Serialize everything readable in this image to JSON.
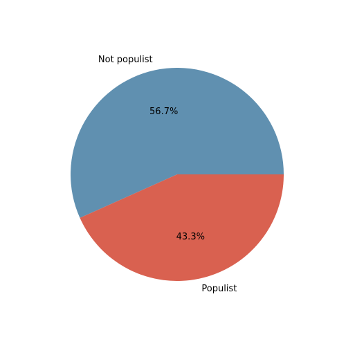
{
  "chart_data": {
    "type": "pie",
    "title": "",
    "start_angle_deg": 0,
    "direction": "counterclockwise",
    "slices": [
      {
        "label": "Not populist",
        "value": 56.7,
        "pct_label": "56.7%",
        "color": "#6090b0"
      },
      {
        "label": "Populist",
        "value": 43.3,
        "pct_label": "43.3%",
        "color": "#d96150"
      }
    ]
  }
}
